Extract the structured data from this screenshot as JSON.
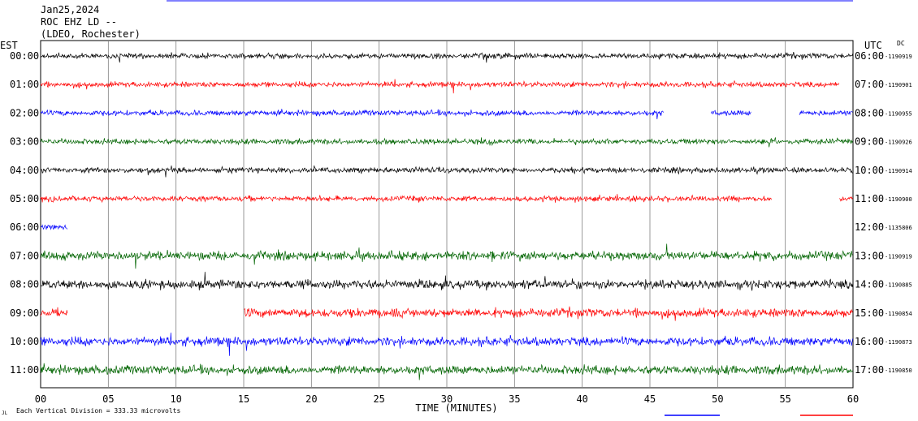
{
  "header": {
    "line1": "Jan25,2024",
    "line2": "ROC EHZ LD --",
    "line3": "(LDEO, Rochester)"
  },
  "left_axis_label": "EST",
  "right_axis_label": "UTC",
  "right_axis_sublabel": "DC",
  "footer_note": "Each Vertical Division =  333.33 microvolts",
  "corner_mark": "JL",
  "colors": {
    "black": "#000000",
    "red": "#ff0000",
    "blue": "#0000ff",
    "green": "#006400",
    "grid": "#808080"
  },
  "chart_data": {
    "type": "line",
    "title": "",
    "xlabel": "TIME (MINUTES)",
    "ylabel": "",
    "xlim": [
      0,
      60
    ],
    "x_tick_labels": [
      "00",
      "05",
      "10",
      "15",
      "20",
      "25",
      "30",
      "35",
      "40",
      "45",
      "50",
      "55",
      "60"
    ],
    "series": [
      {
        "est": "00:00",
        "utc": "06:00",
        "dc": "-1190919",
        "color": "#000000",
        "amplitude": "moderate",
        "data_start_min": 0,
        "data_end_min": 60,
        "gaps": []
      },
      {
        "est": "01:00",
        "utc": "07:00",
        "dc": "-1190901",
        "color": "#ff0000",
        "amplitude": "moderate",
        "data_start_min": 0,
        "data_end_min": 59,
        "gaps": []
      },
      {
        "est": "02:00",
        "utc": "08:00",
        "dc": "-1190955",
        "color": "#0000ff",
        "amplitude": "moderate",
        "data_start_min": 0,
        "data_end_min": 60,
        "gaps": [
          [
            46,
            49.5
          ],
          [
            52.5,
            56
          ]
        ]
      },
      {
        "est": "03:00",
        "utc": "09:00",
        "dc": "-1190926",
        "color": "#006400",
        "amplitude": "moderate",
        "data_start_min": 0,
        "data_end_min": 60,
        "gaps": []
      },
      {
        "est": "04:00",
        "utc": "10:00",
        "dc": "-1190914",
        "color": "#000000",
        "amplitude": "moderate",
        "data_start_min": 0,
        "data_end_min": 60,
        "gaps": []
      },
      {
        "est": "05:00",
        "utc": "11:00",
        "dc": "-1190900",
        "color": "#ff0000",
        "amplitude": "moderate",
        "data_start_min": 0,
        "data_end_min": 60,
        "gaps": [
          [
            54,
            59
          ]
        ]
      },
      {
        "est": "06:00",
        "utc": "12:00",
        "dc": "-1135806",
        "color": "#0000ff",
        "amplitude": "moderate",
        "data_start_min": 0,
        "data_end_min": 2,
        "gaps": []
      },
      {
        "est": "07:00",
        "utc": "13:00",
        "dc": "-1190919",
        "color": "#006400",
        "amplitude": "high",
        "data_start_min": 0,
        "data_end_min": 60,
        "gaps": []
      },
      {
        "est": "08:00",
        "utc": "14:00",
        "dc": "-1190885",
        "color": "#000000",
        "amplitude": "high",
        "data_start_min": 0,
        "data_end_min": 60,
        "gaps": []
      },
      {
        "est": "09:00",
        "utc": "15:00",
        "dc": "-1190854",
        "color": "#ff0000",
        "amplitude": "high",
        "data_start_min": 0,
        "data_end_min": 60,
        "gaps": [
          [
            2,
            15
          ]
        ]
      },
      {
        "est": "10:00",
        "utc": "16:00",
        "dc": "-1190873",
        "color": "#0000ff",
        "amplitude": "high",
        "data_start_min": 0,
        "data_end_min": 60,
        "gaps": []
      },
      {
        "est": "11:00",
        "utc": "17:00",
        "dc": "-1190850",
        "color": "#006400",
        "amplitude": "high",
        "data_start_min": 0,
        "data_end_min": 60,
        "gaps": []
      }
    ]
  }
}
